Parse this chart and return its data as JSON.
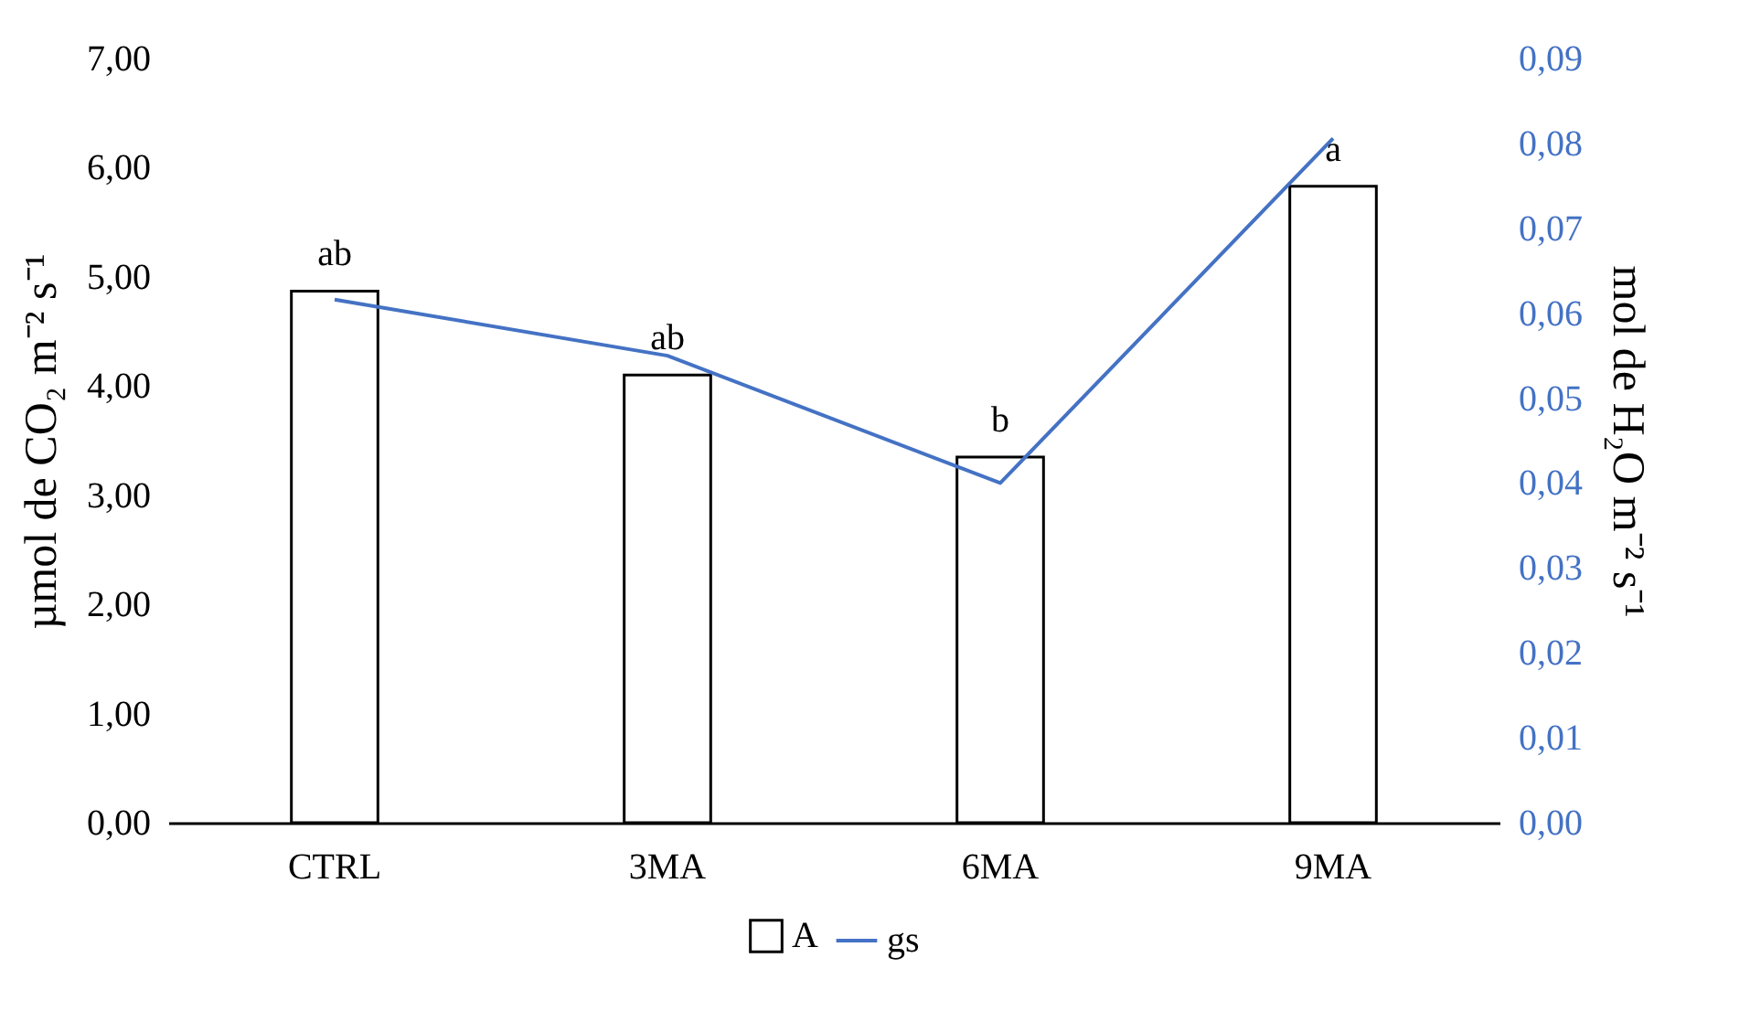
{
  "chart_data": {
    "type": "bar",
    "categories": [
      "CTRL",
      "3MA",
      "6MA",
      "9MA"
    ],
    "series": [
      {
        "name": "A",
        "color": "#ffffff",
        "values": [
          4.87,
          4.1,
          3.35,
          5.83
        ]
      },
      {
        "name": "gs",
        "type": "line",
        "axis": "y2",
        "color": "#4472c4",
        "values": [
          0.0616,
          0.055,
          0.04,
          0.0806
        ]
      }
    ],
    "ylabel": "µmol de CO₂ m⁻² s⁻¹",
    "y2label": "mol de H₂O m⁻² s⁻¹",
    "ylim": [
      0,
      7
    ],
    "yticks": [
      {
        "value": 0,
        "label": "0,00"
      },
      {
        "value": 1,
        "label": "1,00"
      },
      {
        "value": 2,
        "label": "2,00"
      },
      {
        "value": 3,
        "label": "3,00"
      },
      {
        "value": 4,
        "label": "4,00"
      },
      {
        "value": 5,
        "label": "5,00"
      },
      {
        "value": 6,
        "label": "6,00"
      },
      {
        "value": 7,
        "label": "7,00"
      }
    ],
    "y2lim": [
      0,
      0.09
    ],
    "y2ticks": [
      {
        "value": 0,
        "label": "0,00"
      },
      {
        "value": 0.01,
        "label": "0,01"
      },
      {
        "value": 0.02,
        "label": "0,02"
      },
      {
        "value": 0.03,
        "label": "0,03"
      },
      {
        "value": 0.04,
        "label": "0,04"
      },
      {
        "value": 0.05,
        "label": "0,05"
      },
      {
        "value": 0.06,
        "label": "0,06"
      },
      {
        "value": 0.07,
        "label": "0,07"
      },
      {
        "value": 0.08,
        "label": "0,08"
      },
      {
        "value": 0.09,
        "label": "0,09"
      }
    ],
    "annotations": [
      {
        "text": "ab",
        "x": "CTRL",
        "y": 4.87
      },
      {
        "text": "ab",
        "x": "3MA",
        "y": 4.1
      },
      {
        "text": "b",
        "x": "6MA",
        "y": 3.35
      },
      {
        "text": "a",
        "x": "9MA",
        "y": 5.83
      }
    ],
    "legend": "bottom",
    "grid": false
  }
}
